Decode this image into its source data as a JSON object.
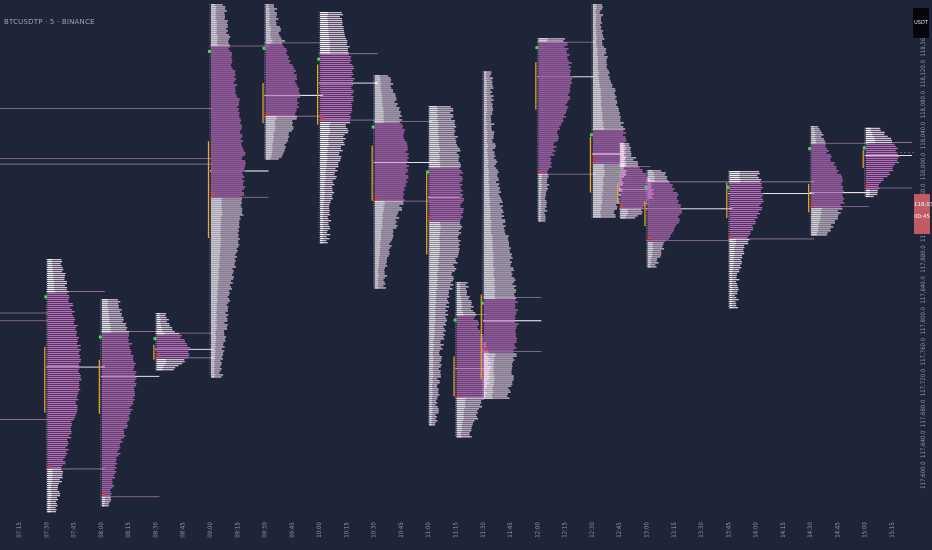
{
  "header": {
    "title": "BTCUSDTP · 5 · BINANCE",
    "currency": "USDT"
  },
  "last_price": {
    "value": "118,039.8",
    "countdown": "00:45"
  },
  "colors": {
    "background": "#1e2538",
    "tpo_upper": "#f3d9f0",
    "tpo_lower": "#c06fc0",
    "poc": "#ffffff",
    "level_line": "#9d7aa0",
    "ib": "#f5a623",
    "open_marker": "#3ddc54",
    "close_marker": "#e03c3c",
    "axis_text": "#8a93a8",
    "last_price": "#c05b63"
  },
  "chart_data": {
    "type": "market_profile",
    "ylim": [
      117560,
      118200
    ],
    "y_ticks": [
      "118,160.0",
      "118,120.0",
      "118,080.0",
      "118,040.0",
      "118,000.0",
      "117,960.0",
      "117,920.0",
      "117,880.0",
      "117,840.0",
      "117,800.0",
      "117,760.0",
      "117,720.0",
      "117,680.0",
      "117,640.0",
      "117,600.0"
    ],
    "x_ticks": [
      "07:15",
      "07:30",
      "07:45",
      "08:00",
      "08:15",
      "08:30",
      "08:45",
      "09:00",
      "09:15",
      "09:30",
      "09:45",
      "10:00",
      "10:15",
      "10:30",
      "10:45",
      "11:00",
      "11:15",
      "11:30",
      "11:45",
      "12:00",
      "12:15",
      "12:30",
      "12:45",
      "13:00",
      "13:15",
      "13:30",
      "13:45",
      "14:00",
      "14:15",
      "14:30",
      "14:45",
      "15:00",
      "15:15"
    ],
    "profiles": [
      {
        "time": "07:30",
        "high": 117880,
        "low": 117552,
        "poc": 117740,
        "val": 117608,
        "vah": 117838
      },
      {
        "time": "08:00",
        "high": 117828,
        "low": 117560,
        "poc": 117728,
        "val": 117572,
        "vah": 117786
      },
      {
        "time": "08:30",
        "high": 117810,
        "low": 117735,
        "poc": 117763,
        "val": 117752,
        "vah": 117784
      },
      {
        "time": "09:00",
        "high": 118210,
        "low": 117728,
        "poc": 117994,
        "val": 117960,
        "vah": 118156
      },
      {
        "time": "09:30",
        "high": 118210,
        "low": 118010,
        "poc": 118092,
        "val": 118065,
        "vah": 118160
      },
      {
        "time": "10:00",
        "high": 118200,
        "low": 117900,
        "poc": 118108,
        "val": 118060,
        "vah": 118146
      },
      {
        "time": "10:30",
        "high": 118118,
        "low": 117842,
        "poc": 118005,
        "val": 117955,
        "vah": 118058
      },
      {
        "time": "11:00",
        "high": 118078,
        "low": 117666,
        "poc": 117960,
        "val": 117930,
        "vah": 118000
      },
      {
        "time": "11:15",
        "high": 117850,
        "low": 117650,
        "poc": 117738,
        "val": 117700,
        "vah": 117808
      },
      {
        "time": "11:30",
        "high": 118123,
        "low": 117700,
        "poc": 117800,
        "val": 117760,
        "vah": 117830
      },
      {
        "time": "12:00",
        "high": 118166,
        "low": 117930,
        "poc": 118116,
        "val": 117990,
        "vah": 118161
      },
      {
        "time": "12:30",
        "high": 118210,
        "low": 117933,
        "poc": 118016,
        "val": 118005,
        "vah": 118048
      },
      {
        "time": "12:45",
        "high": 118030,
        "low": 117934,
        "poc": 117970,
        "val": 117945,
        "vah": 118000
      },
      {
        "time": "13:00",
        "high": 117995,
        "low": 117870,
        "poc": 117945,
        "val": 117904,
        "vah": 117980
      },
      {
        "time": "13:45",
        "high": 117994,
        "low": 117817,
        "poc": 117965,
        "val": 117906,
        "vah": 117980
      },
      {
        "time": "14:30",
        "high": 118052,
        "low": 117910,
        "poc": 117966,
        "val": 117948,
        "vah": 118030
      },
      {
        "time": "15:00",
        "high": 118050,
        "low": 117961,
        "poc": 118014,
        "val": 117972,
        "vah": 118031
      }
    ]
  }
}
